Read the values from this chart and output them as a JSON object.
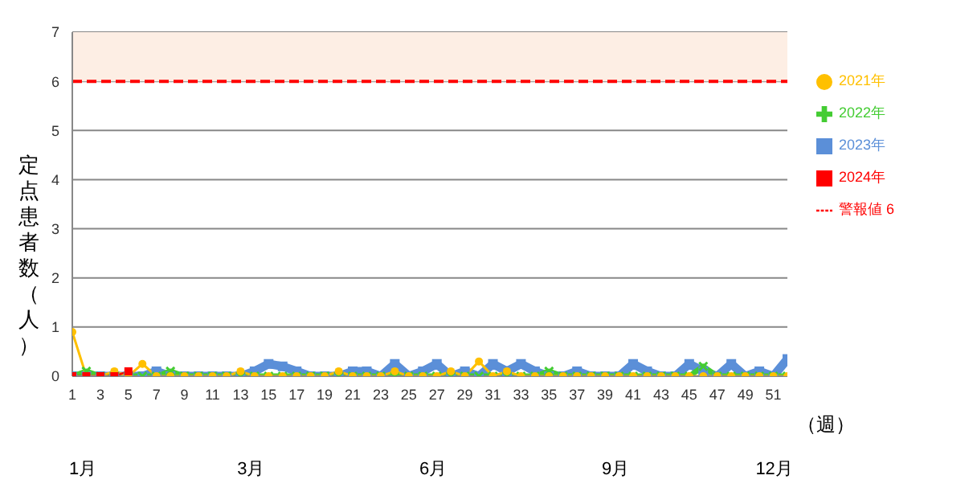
{
  "chart_data": {
    "type": "line",
    "ylabel": "定点患者数（人）",
    "xlabel": "（週）",
    "x": [
      1,
      2,
      3,
      4,
      5,
      6,
      7,
      8,
      9,
      10,
      11,
      12,
      13,
      14,
      15,
      16,
      17,
      18,
      19,
      20,
      21,
      22,
      23,
      24,
      25,
      26,
      27,
      28,
      29,
      30,
      31,
      32,
      33,
      34,
      35,
      36,
      37,
      38,
      39,
      40,
      41,
      42,
      43,
      44,
      45,
      46,
      47,
      48,
      49,
      50,
      51,
      52
    ],
    "xlim": [
      1,
      52
    ],
    "xticks": [
      1,
      3,
      5,
      7,
      9,
      11,
      13,
      15,
      17,
      19,
      21,
      23,
      25,
      27,
      29,
      31,
      33,
      35,
      37,
      39,
      41,
      43,
      45,
      47,
      49,
      51
    ],
    "ylim": [
      0,
      7
    ],
    "yticks": [
      0,
      1,
      2,
      3,
      4,
      5,
      6,
      7
    ],
    "grid": "y",
    "legend": "right",
    "bands": [
      {
        "axis": "y",
        "from": 6,
        "to": 7,
        "color": "#fdeee4"
      }
    ],
    "annotations": [
      "1月",
      "3月",
      "6月",
      "9月",
      "12月"
    ],
    "series": [
      {
        "name": "2021年",
        "color": "#ffc000",
        "marker": "circle",
        "values": [
          0.9,
          0,
          0,
          0.1,
          0,
          0.25,
          0,
          0,
          0,
          0,
          0,
          0,
          0.1,
          0,
          0,
          0,
          0,
          0,
          0,
          0.1,
          0,
          0,
          0,
          0.1,
          0,
          0,
          0,
          0.1,
          0,
          0.3,
          0,
          0.1,
          0,
          0,
          0,
          0,
          0,
          0,
          0,
          0,
          0,
          0,
          0,
          0,
          0,
          0,
          0,
          0,
          0,
          0,
          0,
          0
        ]
      },
      {
        "name": "2022年",
        "color": "#44cc33",
        "marker": "cross",
        "values": [
          0,
          0.1,
          0,
          0,
          0,
          0,
          0,
          0.1,
          0,
          0,
          0,
          0,
          0,
          0,
          0,
          0,
          0,
          0,
          0,
          0,
          0,
          0,
          0,
          0,
          0,
          0,
          0,
          0,
          0,
          0,
          0,
          0,
          0,
          0,
          0.1,
          0,
          0,
          0,
          0,
          0,
          0,
          0,
          0,
          0,
          0,
          0.2,
          0,
          0,
          0,
          0,
          0,
          0
        ]
      },
      {
        "name": "2023年",
        "color": "#5b8fd8",
        "marker": "square",
        "values": [
          0,
          0,
          0,
          0,
          0,
          0,
          0.1,
          0,
          0,
          0,
          0,
          0,
          0,
          0.1,
          0.25,
          0.2,
          0.1,
          0,
          0,
          0,
          0.1,
          0.1,
          0,
          0.25,
          0,
          0.1,
          0.25,
          0,
          0.1,
          0,
          0.25,
          0.1,
          0.25,
          0.1,
          0,
          0,
          0.1,
          0,
          0,
          0,
          0.25,
          0.1,
          0,
          0,
          0.25,
          0.1,
          0,
          0.25,
          0,
          0.1,
          0,
          0.35
        ]
      },
      {
        "name": "警報値 6",
        "color": "#ff0000",
        "marker": "none",
        "line_style": "dashed",
        "values": [
          6,
          6,
          6,
          6,
          6,
          6,
          6,
          6,
          6,
          6,
          6,
          6,
          6,
          6,
          6,
          6,
          6,
          6,
          6,
          6,
          6,
          6,
          6,
          6,
          6,
          6,
          6,
          6,
          6,
          6,
          6,
          6,
          6,
          6,
          6,
          6,
          6,
          6,
          6,
          6,
          6,
          6,
          6,
          6,
          6,
          6,
          6,
          6,
          6,
          6,
          6,
          6
        ]
      },
      {
        "name": "2024年",
        "color": "#ff0000",
        "marker": "square",
        "values": [
          0,
          0,
          0,
          0,
          0.1,
          null,
          null,
          null,
          null,
          null,
          null,
          null,
          null,
          null,
          null,
          null,
          null,
          null,
          null,
          null,
          null,
          null,
          null,
          null,
          null,
          null,
          null,
          null,
          null,
          null,
          null,
          null,
          null,
          null,
          null,
          null,
          null,
          null,
          null,
          null,
          null,
          null,
          null,
          null,
          null,
          null,
          null,
          null,
          null,
          null,
          null,
          null
        ]
      }
    ]
  }
}
